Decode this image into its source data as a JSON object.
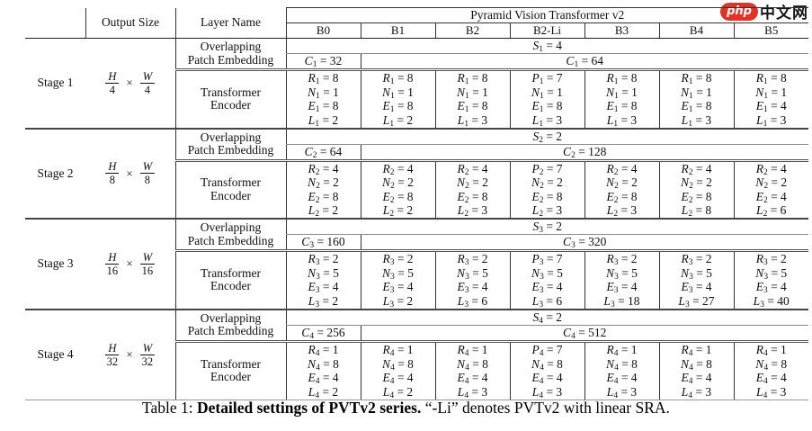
{
  "logo": {
    "badge": "php",
    "site": "中文网"
  },
  "table": {
    "header": {
      "output_size": "Output Size",
      "layer_name": "Layer Name",
      "group_title": "Pyramid Vision Transformer v2",
      "columns": [
        "B0",
        "B1",
        "B2",
        "B2-Li",
        "B3",
        "B4",
        "B5"
      ]
    },
    "layer_names": {
      "patch": "Overlapping\nPatch Embedding",
      "encoder": "Transformer\nEncoder"
    },
    "misc": {
      "times": "×"
    },
    "stages": [
      {
        "label": "Stage 1",
        "output": {
          "n1": "H",
          "d1": "4",
          "n2": "W",
          "d2": "4"
        },
        "s": "S_1 = 4",
        "c_b0": "C_1 = 32",
        "c_rest": "C_1 = 64",
        "cols": [
          [
            "R_1 = 8",
            "N_1 = 1",
            "E_1 = 8",
            "L_1 = 2"
          ],
          [
            "R_1 = 8",
            "N_1 = 1",
            "E_1 = 8",
            "L_1 = 2"
          ],
          [
            "R_1 = 8",
            "N_1 = 1",
            "E_1 = 8",
            "L_1 = 3"
          ],
          [
            "P_1 = 7",
            "N_1 = 1",
            "E_1 = 8",
            "L_1 = 3"
          ],
          [
            "R_1 = 8",
            "N_1 = 1",
            "E_1 = 8",
            "L_1 = 3"
          ],
          [
            "R_1 = 8",
            "N_1 = 1",
            "E_1 = 8",
            "L_1 = 3"
          ],
          [
            "R_1 = 8",
            "N_1 = 1",
            "E_1 = 4",
            "L_1 = 3"
          ]
        ]
      },
      {
        "label": "Stage 2",
        "output": {
          "n1": "H",
          "d1": "8",
          "n2": "W",
          "d2": "8"
        },
        "s": "S_2 = 2",
        "c_b0": "C_2 = 64",
        "c_rest": "C_2 = 128",
        "cols": [
          [
            "R_2 = 4",
            "N_2 = 2",
            "E_2 = 8",
            "L_2 = 2"
          ],
          [
            "R_2 = 4",
            "N_2 = 2",
            "E_2 = 8",
            "L_2 = 2"
          ],
          [
            "R_2 = 4",
            "N_2 = 2",
            "E_2 = 8",
            "L_2 = 3"
          ],
          [
            "P_2 = 7",
            "N_2 = 2",
            "E_2 = 8",
            "L_2 = 3"
          ],
          [
            "R_2 = 4",
            "N_2 = 2",
            "E_2 = 8",
            "L_2 = 3"
          ],
          [
            "R_2 = 4",
            "N_2 = 2",
            "E_2 = 8",
            "L_2 = 8"
          ],
          [
            "R_2 = 4",
            "N_2 = 2",
            "E_2 = 4",
            "L_2 = 6"
          ]
        ]
      },
      {
        "label": "Stage 3",
        "output": {
          "n1": "H",
          "d1": "16",
          "n2": "W",
          "d2": "16"
        },
        "s": "S_3 = 2",
        "c_b0": "C_3 = 160",
        "c_rest": "C_3 = 320",
        "cols": [
          [
            "R_3 = 2",
            "N_3 = 5",
            "E_3 = 4",
            "L_3 = 2"
          ],
          [
            "R_3 = 2",
            "N_3 = 5",
            "E_3 = 4",
            "L_3 = 2"
          ],
          [
            "R_3 = 2",
            "N_3 = 5",
            "E_3 = 4",
            "L_3 = 6"
          ],
          [
            "P_3 = 7",
            "N_3 = 5",
            "E_3 = 4",
            "L_3 = 6"
          ],
          [
            "R_3 = 2",
            "N_3 = 5",
            "E_3 = 4",
            "L_3 = 18"
          ],
          [
            "R_3 = 2",
            "N_3 = 5",
            "E_3 = 4",
            "L_3 = 27"
          ],
          [
            "R_3 = 2",
            "N_3 = 5",
            "E_3 = 4",
            "L_3 = 40"
          ]
        ]
      },
      {
        "label": "Stage 4",
        "output": {
          "n1": "H",
          "d1": "32",
          "n2": "W",
          "d2": "32"
        },
        "s": "S_4 = 2",
        "c_b0": "C_4 = 256",
        "c_rest": "C_4 = 512",
        "cols": [
          [
            "R_4 = 1",
            "N_4 = 8",
            "E_4 = 4",
            "L_4 = 2"
          ],
          [
            "R_4 = 1",
            "N_4 = 8",
            "E_4 = 4",
            "L_4 = 2"
          ],
          [
            "R_4 = 1",
            "N_4 = 8",
            "E_4 = 4",
            "L_4 = 3"
          ],
          [
            "P_4 = 7",
            "N_4 = 8",
            "E_4 = 4",
            "L_4 = 3"
          ],
          [
            "R_4 = 1",
            "N_4 = 8",
            "E_4 = 4",
            "L_4 = 3"
          ],
          [
            "R_4 = 1",
            "N_4 = 8",
            "E_4 = 4",
            "L_4 = 3"
          ],
          [
            "R_4 = 1",
            "N_4 = 8",
            "E_4 = 4",
            "L_4 = 3"
          ]
        ]
      }
    ]
  },
  "caption": {
    "prefix": "Table 1: ",
    "bold": "Detailed settings of PVTv2 series.",
    "rest": " “-Li” denotes PVTv2 with linear SRA."
  }
}
